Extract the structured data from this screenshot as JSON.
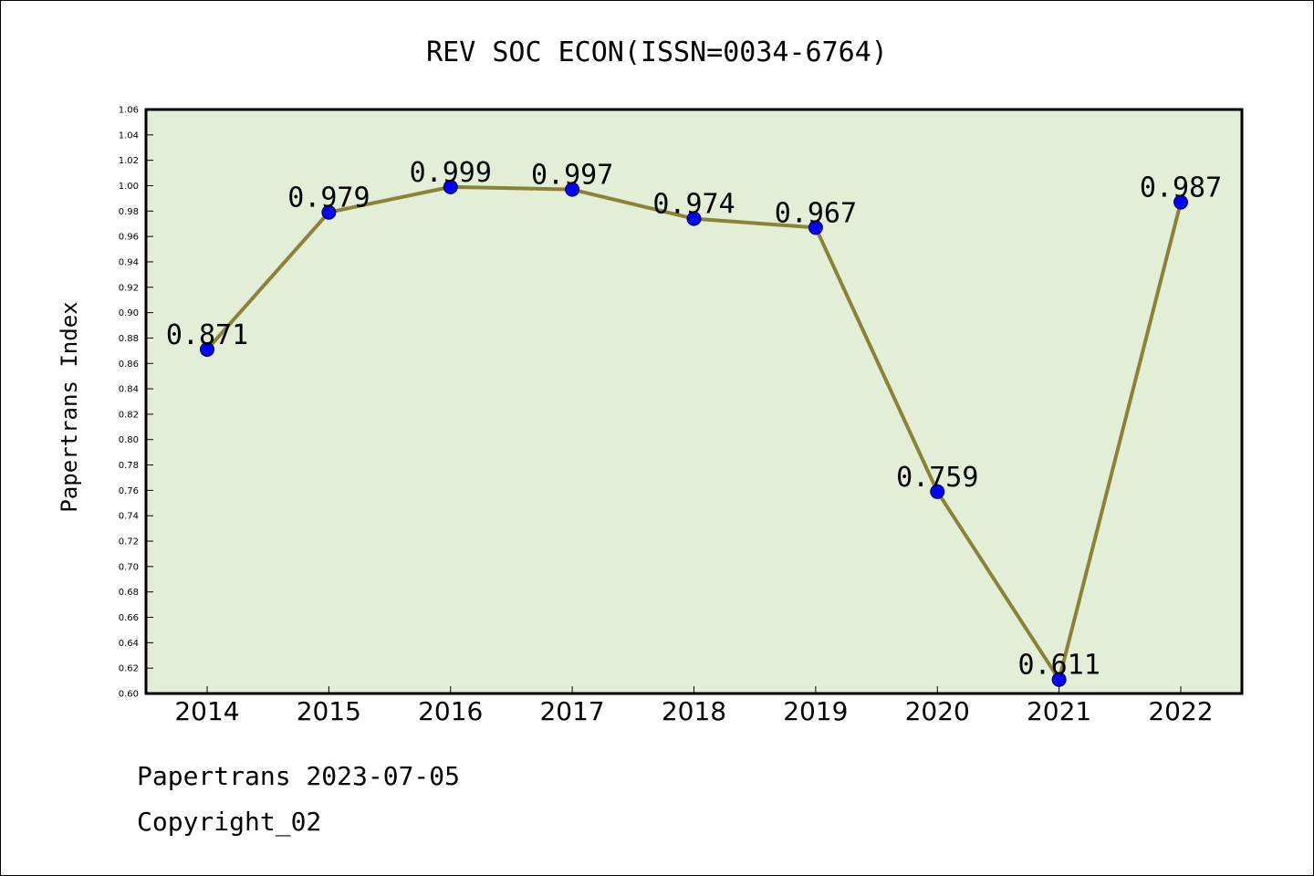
{
  "chart_data": {
    "type": "line",
    "title": "REV SOC ECON(ISSN=0034-6764)",
    "xlabel": "",
    "ylabel": "Papertrans Index",
    "categories": [
      "2014",
      "2015",
      "2016",
      "2017",
      "2018",
      "2019",
      "2020",
      "2021",
      "2022"
    ],
    "values": [
      0.871,
      0.979,
      0.999,
      0.997,
      0.974,
      0.967,
      0.759,
      0.611,
      0.987
    ],
    "data_labels": [
      "0.871",
      "0.979",
      "0.999",
      "0.997",
      "0.974",
      "0.967",
      "0.759",
      "0.611",
      "0.987"
    ],
    "ylim": [
      0.6,
      1.06
    ],
    "yticks": [
      "0.60",
      "0.62",
      "0.64",
      "0.66",
      "0.68",
      "0.70",
      "0.72",
      "0.74",
      "0.76",
      "0.78",
      "0.80",
      "0.82",
      "0.84",
      "0.86",
      "0.88",
      "0.90",
      "0.92",
      "0.94",
      "0.96",
      "0.98",
      "1.00",
      "1.02",
      "1.04",
      "1.06"
    ],
    "grid": false,
    "colors": {
      "plot_background": "#e2efd6",
      "line": "#8b8238",
      "marker": "#0000ff",
      "marker_edge": "#000033"
    }
  },
  "footer": {
    "line1": "Papertrans 2023-07-05",
    "line2": "Copyright_02"
  }
}
